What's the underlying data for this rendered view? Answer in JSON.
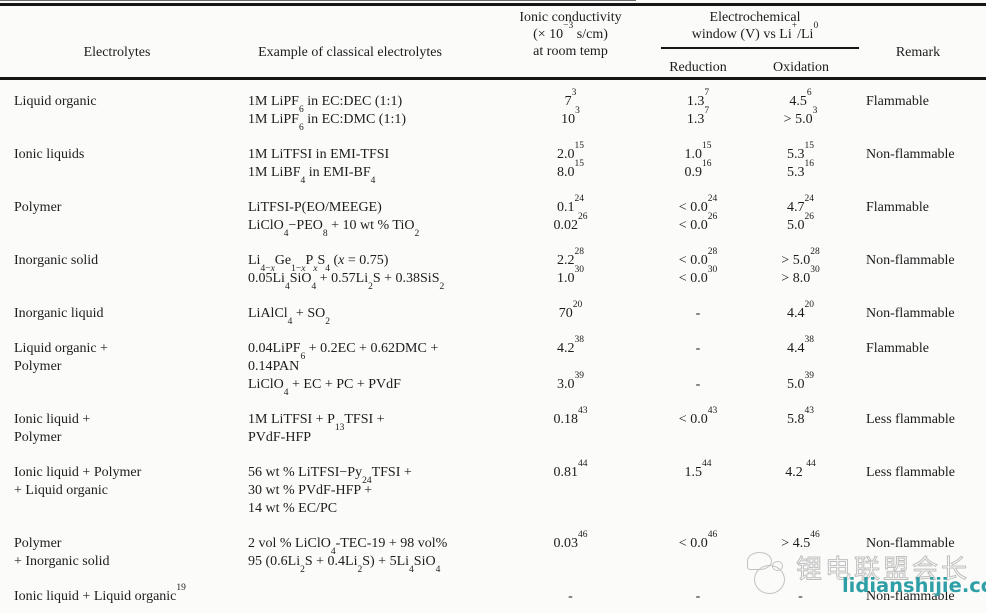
{
  "table": {
    "headers": {
      "electrolytes": "Electrolytes",
      "example": "Example of classical electrolytes",
      "conductivity_l1": "Ionic conductivity",
      "conductivity_l2": "(× 10^{−3} s/cm)",
      "conductivity_l3": "at room temp",
      "window_l1": "Electrochemical",
      "window_l2": "window (V) vs Li^{+}/Li^{0}",
      "reduction": "Reduction",
      "oxidation": "Oxidation",
      "remark": "Remark"
    },
    "groups": [
      {
        "electrolyte": [
          "Liquid organic"
        ],
        "entries": [
          {
            "example": [
              "1M LiPF_{6} in EC:DEC (1:1)"
            ],
            "conductivity": "7^{3}",
            "reduction": "1.3^{7}",
            "oxidation": "4.5^{6}"
          },
          {
            "example": [
              "1M LiPF_{6} in EC:DMC (1:1)"
            ],
            "conductivity": "10^{3}",
            "reduction": "1.3^{7}",
            "oxidation": "> 5.0^{3}"
          }
        ],
        "remark": "Flammable"
      },
      {
        "electrolyte": [
          "Ionic liquids"
        ],
        "entries": [
          {
            "example": [
              "1M LiTFSI in EMI-TFSI"
            ],
            "conductivity": "2.0^{15}",
            "reduction": "1.0^{15}",
            "oxidation": "5.3^{15}"
          },
          {
            "example": [
              "1M LiBF_{4} in EMI-BF_{4}"
            ],
            "conductivity": "8.0^{15}",
            "reduction": "0.9^{16}",
            "oxidation": "5.3^{16}"
          }
        ],
        "remark": "Non-flammable"
      },
      {
        "electrolyte": [
          "Polymer"
        ],
        "entries": [
          {
            "example": [
              "LiTFSI-P(EO/MEEGE)"
            ],
            "conductivity": "0.1^{24}",
            "reduction": "< 0.0^{24}",
            "oxidation": "4.7^{24}"
          },
          {
            "example": [
              "LiClO_{4}−PEO_{8} + 10 wt % TiO_{2}"
            ],
            "conductivity": "0.02^{26}",
            "reduction": "< 0.0^{26}",
            "oxidation": "5.0^{26}"
          }
        ],
        "remark": "Flammable"
      },
      {
        "electrolyte": [
          "Inorganic solid"
        ],
        "entries": [
          {
            "example": [
              "Li_{4−/{x}}Ge_{1−/{x}}P_{/{x}}S_{4} (/{x} = 0.75)"
            ],
            "conductivity": "2.2^{28}",
            "reduction": "< 0.0^{28}",
            "oxidation": "> 5.0^{28}"
          },
          {
            "example": [
              "0.05Li_{4}SiO_{4} + 0.57Li_{2}S + 0.38SiS_{2}"
            ],
            "conductivity": "1.0^{30}",
            "reduction": "< 0.0^{30}",
            "oxidation": "> 8.0^{30}"
          }
        ],
        "remark": "Non-flammable"
      },
      {
        "electrolyte": [
          "Inorganic liquid"
        ],
        "entries": [
          {
            "example": [
              "LiAlCl_{4} + SO_{2}"
            ],
            "conductivity": "70^{20}",
            "reduction": "-",
            "oxidation": "4.4^{20}"
          }
        ],
        "remark": "Non-flammable"
      },
      {
        "electrolyte": [
          "Liquid organic +",
          "Polymer"
        ],
        "entries": [
          {
            "example": [
              "0.04LiPF_{6} + 0.2EC + 0.62DMC +",
              "0.14PAN"
            ],
            "conductivity": "4.2^{38}",
            "reduction": "-",
            "oxidation": "4.4^{38}"
          },
          {
            "example": [
              "LiClO_{4} + EC + PC + PVdF"
            ],
            "conductivity": "3.0^{39}",
            "reduction": "-",
            "oxidation": "5.0^{39}"
          }
        ],
        "remark": "Flammable"
      },
      {
        "electrolyte": [
          "Ionic liquid +",
          "Polymer"
        ],
        "entries": [
          {
            "example": [
              "1M LiTFSI + P_{13}TFSI +",
              "PVdF-HFP"
            ],
            "conductivity": "0.18^{43}",
            "reduction": "< 0.0^{43}",
            "oxidation": "5.8^{43}"
          }
        ],
        "remark": "Less flammable"
      },
      {
        "electrolyte": [
          "Ionic liquid + Polymer",
          "+ Liquid organic"
        ],
        "entries": [
          {
            "example": [
              "56 wt % LiTFSI−Py_{24}TFSI +",
              "30 wt % PVdF-HFP +",
              "14 wt % EC/PC"
            ],
            "conductivity": "0.81^{44}",
            "reduction": "1.5^{44}",
            "oxidation": "4.2 ^{44}"
          }
        ],
        "remark": "Less flammable"
      },
      {
        "electrolyte": [
          "Polymer",
          "+ Inorganic solid"
        ],
        "entries": [
          {
            "example": [
              "2 vol % LiClO_{4}-TEC-19 + 98 vol%",
              "95 (0.6Li_{2}S + 0.4Li_{2}S) + 5Li_{4}SiO_{4}"
            ],
            "conductivity": "0.03^{46}",
            "reduction": "< 0.0^{46}",
            "oxidation": "> 4.5^{46}"
          }
        ],
        "remark": "Non-flammable"
      },
      {
        "electrolyte": [
          "Ionic liquid + Liquid organic^{19}"
        ],
        "entries": [
          {
            "example": [],
            "conductivity": "-",
            "reduction": "-",
            "oxidation": "-"
          }
        ],
        "remark": "Non-flammable"
      }
    ]
  },
  "watermark": {
    "brand_cn": "锂电联盟会长",
    "url": "lidianshijie.com",
    "url_color": "#2e9fa6",
    "outline_color": "#bfbfbf"
  },
  "colors": {
    "paper": "#fbfbfa",
    "ink": "#1c1c1c",
    "rule": "#161616"
  }
}
